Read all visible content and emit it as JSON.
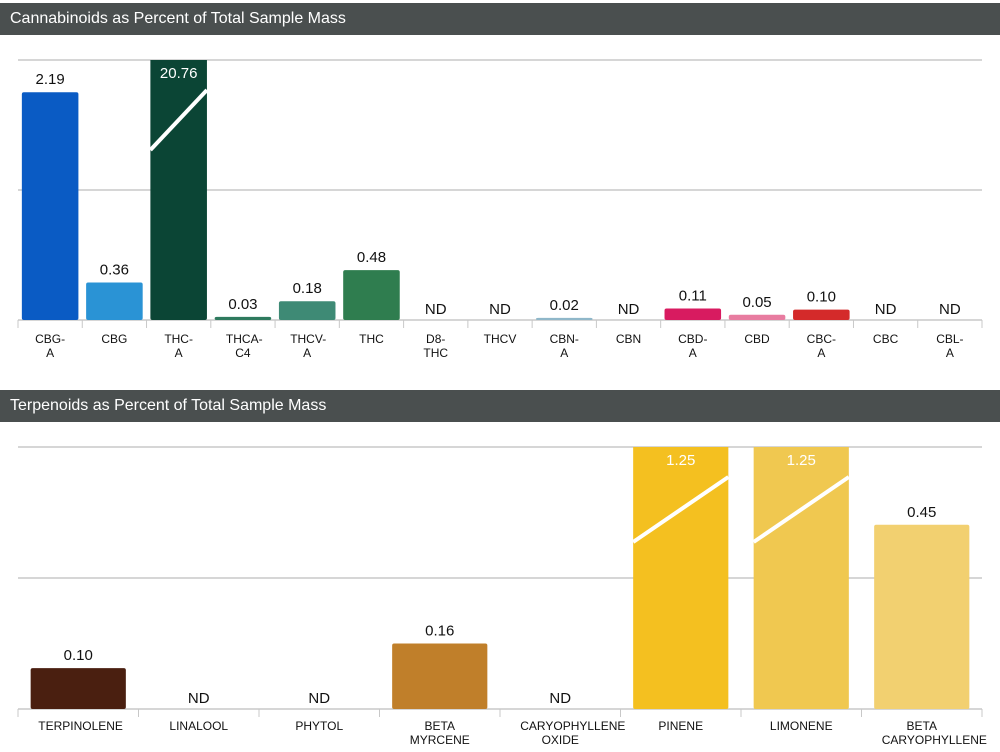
{
  "chart_data": [
    {
      "type": "bar",
      "title": "Cannabinoids as Percent of Total Sample Mass",
      "categories": [
        "CBG-A",
        "CBG",
        "THC-A",
        "THCA-C4",
        "THCV-A",
        "THC",
        "D8-THC",
        "THCV",
        "CBN-A",
        "CBN",
        "CBD-A",
        "CBD",
        "CBC-A",
        "CBC",
        "CBL-A"
      ],
      "values": [
        2.19,
        0.36,
        20.76,
        0.03,
        0.18,
        0.48,
        null,
        null,
        0.02,
        null,
        0.11,
        0.05,
        0.1,
        null,
        null
      ],
      "value_labels": [
        "2.19",
        "0.36",
        "20.76",
        "0.03",
        "0.18",
        "0.48",
        "ND",
        "ND",
        "0.02",
        "ND",
        "0.11",
        "0.05",
        "0.10",
        "ND",
        "ND"
      ],
      "colors": [
        "#0a5bc4",
        "#2a93d5",
        "#0b4535",
        "#2e7a5e",
        "#3e8a75",
        "#2f7d4f",
        "#4a8f6a",
        "#5a9a7a",
        "#8fb7c9",
        "#7aa6b8",
        "#d81b60",
        "#e87ca0",
        "#d42a2a",
        "#c84a4a",
        "#b85a5a"
      ],
      "ylim": [
        0,
        2.5
      ],
      "yticks": [
        0,
        1.25,
        2.5
      ],
      "grid": true
    },
    {
      "type": "bar",
      "title": "Terpenoids as Percent of Total Sample Mass",
      "categories": [
        "TERPINOLENE",
        "LINALOOL",
        "PHYTOL",
        "BETA MYRCENE",
        "CARYOPHYLLENE OXIDE",
        "PINENE",
        "LIMONENE",
        "BETA CARYOPHYLLENE"
      ],
      "values": [
        0.1,
        null,
        null,
        0.16,
        null,
        1.25,
        1.25,
        0.45
      ],
      "value_labels": [
        "0.10",
        "ND",
        "ND",
        "0.16",
        "ND",
        "1.25",
        "1.25",
        "0.45"
      ],
      "colors": [
        "#4a1f10",
        "#7a4a20",
        "#9a6428",
        "#c07f2a",
        "#d89a30",
        "#f4c020",
        "#f0c850",
        "#f2d070"
      ],
      "ylim": [
        0,
        0.64
      ],
      "yticks": [
        0,
        0.32,
        0.64
      ],
      "grid": true
    }
  ]
}
